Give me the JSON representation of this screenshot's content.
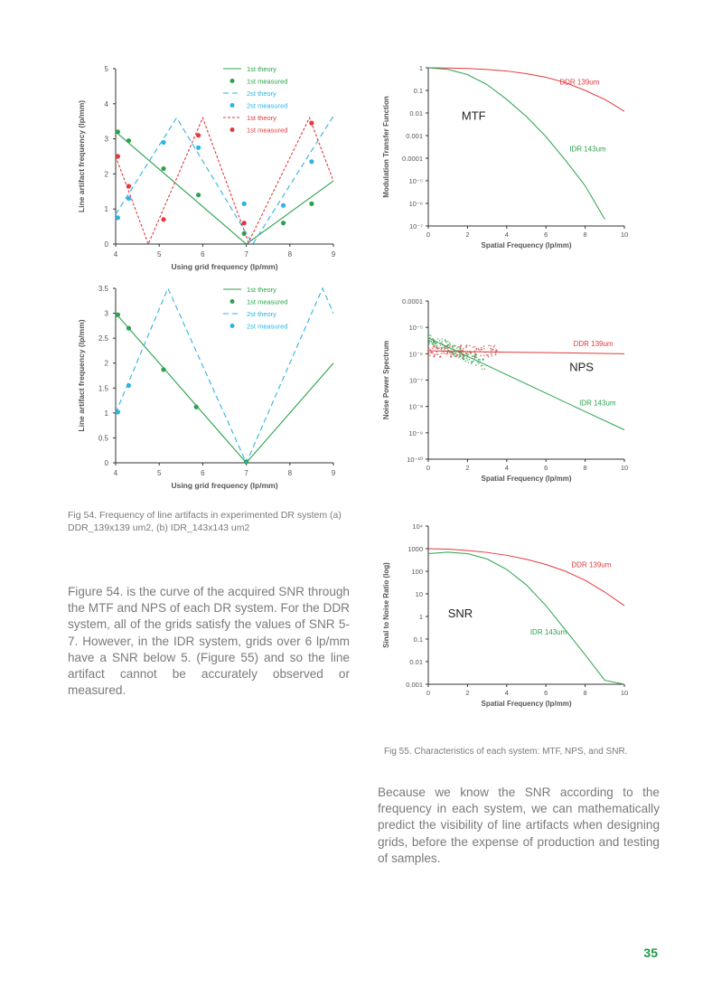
{
  "colors": {
    "green": "#2ca24d",
    "cyan": "#2fb3e3",
    "red": "#e03a3e",
    "axis": "#333333",
    "text": "#7a7a7a",
    "page_number": "#1a9a43"
  },
  "fig54_caption": "Fig 54. Frequency of line artifacts in experimented DR system (a) DDR_139x139 um2, (b) IDR_143x143 um2",
  "fig55_caption": "Fig 55. Characteristics of each system: MTF, NPS, and SNR.",
  "paragraph1": "Figure 54. is the curve of the acquired SNR through the MTF and NPS of each DR system. For the DDR system, all of the grids satisfy the values of SNR 5-7. However, in the IDR system, grids over 6 lp/mm have a SNR below 5. (Figure 55) and so the line artifact cannot be accurately observed or measured.",
  "paragraph2": "Because we know the SNR according to the frequency in each system, we can mathematically predict the visibility of line artifacts when designing grids, before the expense of production and testing of samples.",
  "page_number": "35",
  "chart_data": [
    {
      "id": "chart_a",
      "type": "line",
      "xlabel": "Using grid frequency (lp/mm)",
      "ylabel": "Line artifact frequency (lp/mm)",
      "xlim": [
        4,
        9
      ],
      "ylim": [
        0,
        5
      ],
      "xticks": [
        "4",
        "5",
        "6",
        "7",
        "8",
        "9"
      ],
      "yticks": [
        "0",
        "1",
        "2",
        "3",
        "4",
        "5"
      ],
      "legend_position": "top-right",
      "series": [
        {
          "name": "1st theory",
          "kind": "line",
          "style": "solid",
          "color": "#2ca24d",
          "x": [
            4,
            7,
            9
          ],
          "y": [
            3.2,
            0,
            1.8
          ]
        },
        {
          "name": "1st measured",
          "kind": "points",
          "color": "#2ca24d",
          "x": [
            4.05,
            4.3,
            5.1,
            5.9,
            6.95,
            7.85,
            8.5
          ],
          "y": [
            3.2,
            2.95,
            2.15,
            1.4,
            0.3,
            0.6,
            1.15
          ]
        },
        {
          "name": "2st theory",
          "kind": "line",
          "style": "dashed",
          "color": "#2fb3e3",
          "x": [
            4,
            5.4,
            7.15,
            9
          ],
          "y": [
            0.85,
            3.6,
            0,
            3.65
          ]
        },
        {
          "name": "2st measured",
          "kind": "points",
          "color": "#2fb3e3",
          "x": [
            4.05,
            4.3,
            5.1,
            5.9,
            6.95,
            7.85,
            8.5
          ],
          "y": [
            0.75,
            1.3,
            2.9,
            2.75,
            1.15,
            1.1,
            2.35
          ]
        },
        {
          "name": "1st theory",
          "kind": "line",
          "style": "dotted",
          "color": "#e03a3e",
          "x": [
            4,
            4.75,
            6,
            7.05,
            8.45,
            9
          ],
          "y": [
            2.5,
            0,
            3.6,
            0.05,
            3.6,
            1.8
          ]
        },
        {
          "name": "1st measured",
          "kind": "points",
          "color": "#e03a3e",
          "x": [
            4.05,
            4.3,
            5.1,
            5.9,
            6.95,
            8.5
          ],
          "y": [
            2.5,
            1.65,
            0.7,
            3.1,
            0.6,
            3.45
          ]
        }
      ]
    },
    {
      "id": "chart_b",
      "type": "line",
      "xlabel": "Using grid frequency (lp/mm)",
      "ylabel": "Line artifact frequency (lp/mm)",
      "xlim": [
        4,
        9
      ],
      "ylim": [
        0,
        3.5
      ],
      "xticks": [
        "4",
        "5",
        "6",
        "7",
        "8",
        "9"
      ],
      "yticks": [
        "0",
        "0.5",
        "1",
        "1.5",
        "2",
        "2.5",
        "3",
        "3.5"
      ],
      "legend_position": "top-right",
      "series": [
        {
          "name": "1st theory",
          "kind": "line",
          "style": "solid",
          "color": "#2ca24d",
          "x": [
            4,
            7,
            9
          ],
          "y": [
            3.0,
            0,
            2.0
          ]
        },
        {
          "name": "1st measured",
          "kind": "points",
          "color": "#2ca24d",
          "x": [
            4.05,
            4.3,
            5.1,
            5.85,
            7.0
          ],
          "y": [
            2.97,
            2.7,
            1.87,
            1.12,
            0.02
          ]
        },
        {
          "name": "2st theory",
          "kind": "line",
          "style": "dashed",
          "color": "#2fb3e3",
          "x": [
            4,
            5.2,
            7,
            8.75,
            9
          ],
          "y": [
            1.0,
            3.5,
            0,
            3.5,
            3.0
          ]
        },
        {
          "name": "2st measured",
          "kind": "points",
          "color": "#2fb3e3",
          "x": [
            4.05,
            4.3
          ],
          "y": [
            1.02,
            1.55
          ]
        }
      ]
    },
    {
      "id": "chart_mtf",
      "type": "line",
      "xlabel": "Spatial Frequency (lp/mm)",
      "ylabel": "Modulation Transfer Function",
      "xlim": [
        0,
        10
      ],
      "ylim_log10": [
        -7,
        0
      ],
      "xticks": [
        "0",
        "2",
        "4",
        "6",
        "8",
        "10"
      ],
      "yticks": [
        "1",
        "0.1",
        "0.01",
        "0.001",
        "0.0001",
        "10⁻⁵",
        "10⁻⁶",
        "10⁻⁷"
      ],
      "annotation": "MTF",
      "series": [
        {
          "name": "DDR 139um",
          "color": "#e03a3e",
          "x": [
            0,
            1,
            2,
            3,
            4,
            5,
            6,
            7,
            8,
            9,
            10
          ],
          "y": [
            1,
            0.98,
            0.93,
            0.84,
            0.72,
            0.55,
            0.38,
            0.22,
            0.1,
            0.04,
            0.012
          ]
        },
        {
          "name": "IDR 143um",
          "color": "#2ca24d",
          "x": [
            0,
            1,
            2,
            3,
            4,
            5,
            6,
            7,
            8,
            9
          ],
          "y": [
            1,
            0.85,
            0.5,
            0.18,
            0.04,
            0.007,
            0.0009,
            8e-05,
            6e-06,
            2e-07
          ]
        }
      ]
    },
    {
      "id": "chart_nps",
      "type": "line",
      "xlabel": "Spatial Frequency (lp/mm)",
      "ylabel": "Noise Power Spectrum",
      "xlim": [
        0,
        10
      ],
      "ylim_log10": [
        -10,
        -4
      ],
      "xticks": [
        "0",
        "2",
        "4",
        "6",
        "8",
        "10"
      ],
      "yticks": [
        "0.0001",
        "10⁻⁵",
        "10⁻⁶",
        "10⁻⁷",
        "10⁻⁸",
        "10⁻⁹",
        "10⁻¹⁰"
      ],
      "annotation": "NPS",
      "series": [
        {
          "name": "DDR 139um",
          "color": "#e03a3e",
          "x": [
            0,
            2,
            4,
            6,
            8,
            10
          ],
          "y": [
            1.3e-06,
            1.2e-06,
            1.15e-06,
            1.1e-06,
            1.05e-06,
            1e-06
          ]
        },
        {
          "name": "IDR 143um",
          "color": "#2ca24d",
          "x": [
            0,
            2,
            4,
            6,
            8,
            10
          ],
          "y": [
            4e-06,
            8e-07,
            1.6e-07,
            3.2e-08,
            6.4e-09,
            1.3e-09
          ]
        }
      ]
    },
    {
      "id": "chart_snr",
      "type": "line",
      "xlabel": "Spatial Frequency (lp/mm)",
      "ylabel": "Sinal to Noise Ratio (log)",
      "xlim": [
        0,
        10
      ],
      "ylim_log10": [
        -3,
        4
      ],
      "xticks": [
        "0",
        "2",
        "4",
        "6",
        "8",
        "10"
      ],
      "yticks": [
        "0.001",
        "0.01",
        "0.1",
        "1",
        "10",
        "100",
        "1000",
        "10⁴"
      ],
      "annotation": "SNR",
      "series": [
        {
          "name": "DDR 139um",
          "color": "#e03a3e",
          "x": [
            0,
            1,
            2,
            3,
            4,
            5,
            6,
            7,
            8,
            9,
            10
          ],
          "y": [
            1000,
            950,
            830,
            680,
            510,
            340,
            200,
            100,
            40,
            12,
            3
          ]
        },
        {
          "name": "IDR 143um",
          "color": "#2ca24d",
          "x": [
            0,
            1,
            2,
            3,
            4,
            5,
            6,
            7,
            8,
            9,
            10
          ],
          "y": [
            600,
            700,
            600,
            350,
            120,
            25,
            3,
            0.25,
            0.02,
            0.0015,
            0.0007
          ]
        }
      ]
    }
  ]
}
